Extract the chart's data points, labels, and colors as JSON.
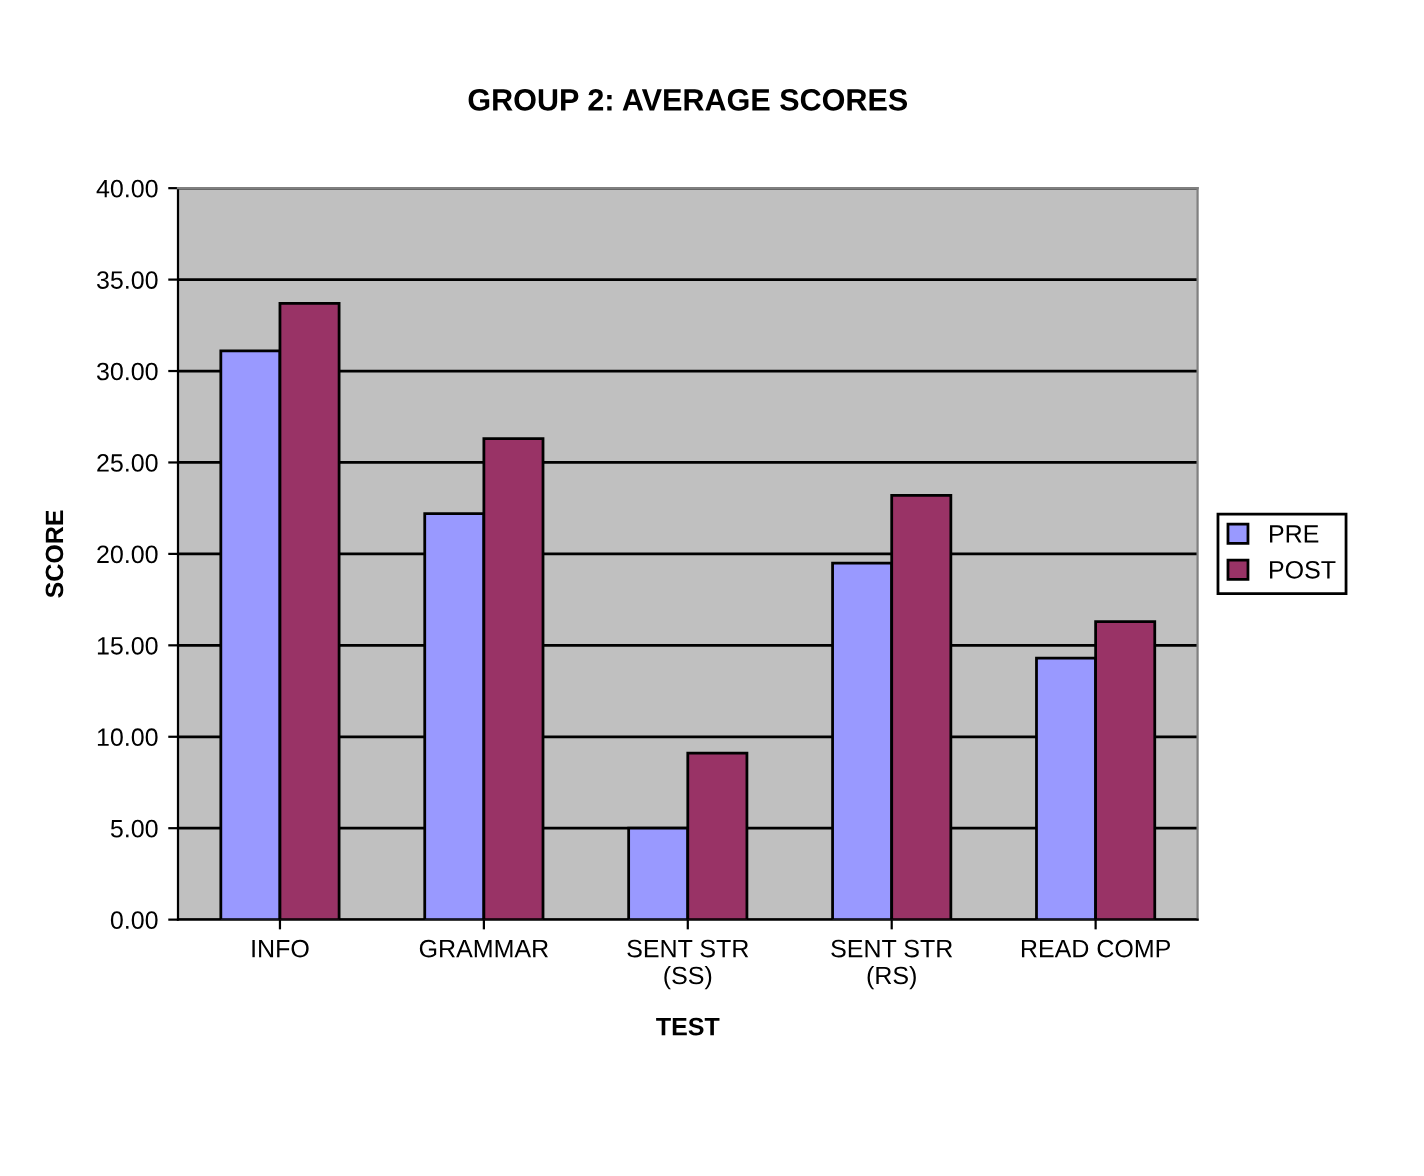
{
  "chart_data": {
    "type": "bar",
    "title": "GROUP 2: AVERAGE SCORES",
    "xlabel": "TEST",
    "ylabel": "SCORE",
    "categories": [
      "INFO",
      "GRAMMAR",
      "SENT STR\n(SS)",
      "SENT STR\n(RS)",
      "READ COMP"
    ],
    "series": [
      {
        "name": "PRE",
        "color": "#9999ff",
        "values": [
          31.1,
          22.2,
          5.0,
          19.5,
          14.3
        ]
      },
      {
        "name": "POST",
        "color": "#993366",
        "values": [
          33.7,
          26.3,
          9.1,
          23.2,
          16.3
        ]
      }
    ],
    "ylim": [
      0,
      40
    ],
    "yticks": [
      {
        "value": 0,
        "label": "0.00"
      },
      {
        "value": 5,
        "label": "5.00"
      },
      {
        "value": 10,
        "label": "10.00"
      },
      {
        "value": 15,
        "label": "15.00"
      },
      {
        "value": 20,
        "label": "20.00"
      },
      {
        "value": 25,
        "label": "25.00"
      },
      {
        "value": 30,
        "label": "30.00"
      },
      {
        "value": 35,
        "label": "35.00"
      },
      {
        "value": 40,
        "label": "40.00"
      }
    ],
    "grid": "y",
    "legend": "right"
  }
}
